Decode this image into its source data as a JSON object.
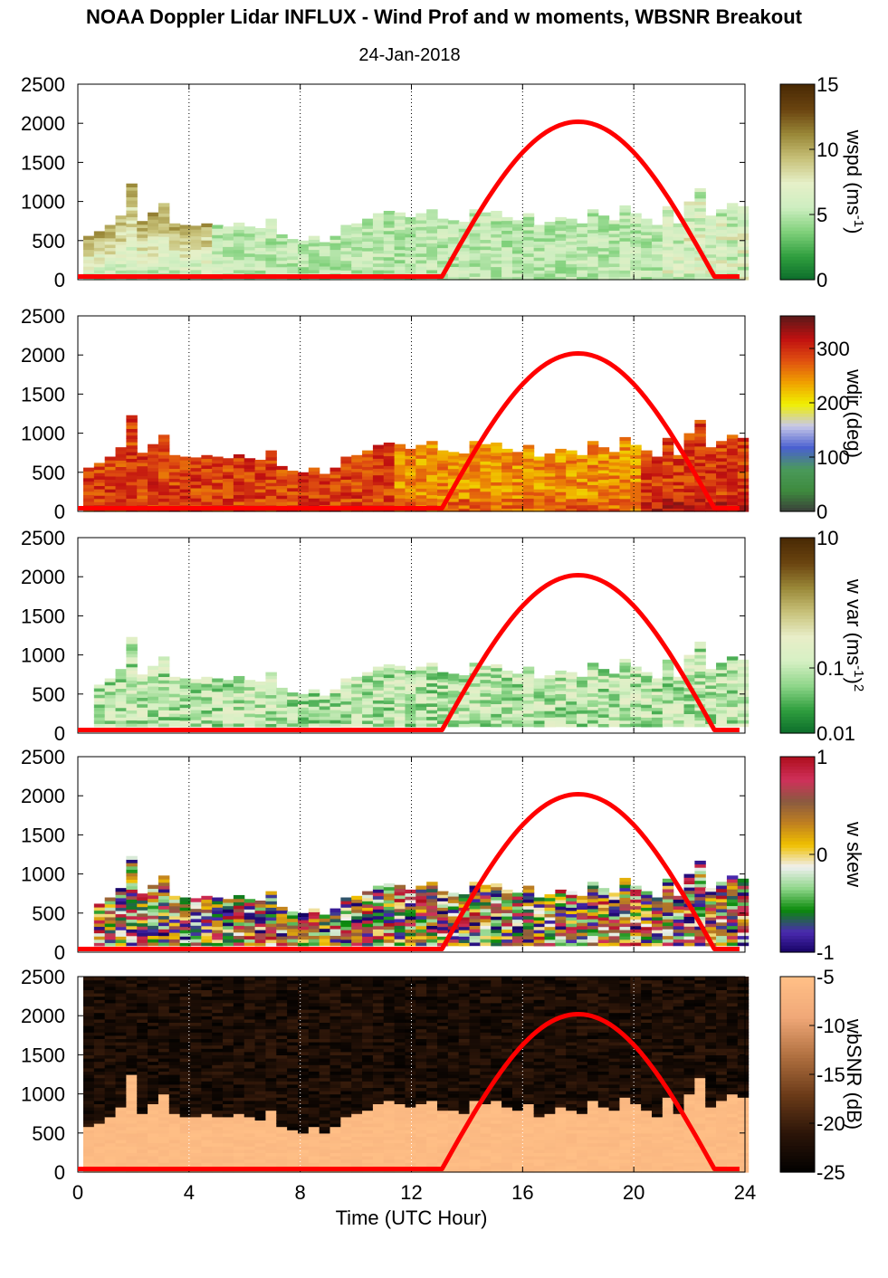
{
  "title": "NOAA Doppler Lidar INFLUX - Wind Prof and w moments, WBSNR Breakout",
  "date": "24-Jan-2018",
  "xlabel": "Time (UTC Hour)",
  "colors": {
    "overlay_curve": "#ff0000",
    "axis": "#000000",
    "grid": "#000000"
  },
  "chart_data": [
    {
      "type": "heatmap",
      "title": "",
      "colorbar_label": "wspd (ms",
      "colorbar_label_sup": "-1",
      "colorbar_label_tail": ")",
      "colorbar_ticks": [
        "0",
        "5",
        "10",
        "15"
      ],
      "clim": [
        0,
        15
      ],
      "colormap": "brown-tan-lightgreen-green",
      "xlim": [
        0,
        24
      ],
      "ylim": [
        0,
        2500
      ],
      "x_ticks": [
        "0",
        "4",
        "8",
        "12",
        "16",
        "20",
        "24"
      ],
      "y_ticks": [
        "0",
        "500",
        "1000",
        "1500",
        "2000",
        "2500"
      ],
      "grid": "vertical dotted",
      "top_height": [
        560,
        620,
        700,
        820,
        1230,
        750,
        860,
        980,
        720,
        700,
        690,
        720,
        700,
        680,
        730,
        680,
        660,
        780,
        580,
        520,
        500,
        560,
        480,
        560,
        700,
        720,
        780,
        850,
        880,
        860,
        800,
        850,
        900,
        780,
        760,
        740,
        900,
        860,
        880,
        800,
        760,
        850,
        700,
        740,
        800,
        780,
        720,
        900,
        820,
        760,
        950,
        850,
        780,
        700,
        940,
        720,
        1000,
        1170,
        820,
        900,
        980,
        940
      ],
      "overlay_curve": {
        "x": [
          0,
          13.1,
          18,
          22.9,
          23.8
        ],
        "y": [
          40,
          40,
          2020,
          40,
          40
        ]
      }
    },
    {
      "type": "heatmap",
      "title": "",
      "colorbar_label": "wdir (deg)",
      "colorbar_ticks": [
        "0",
        "100",
        "200",
        "300"
      ],
      "clim": [
        0,
        360
      ],
      "colormap": "gray-green-blue-lilac-yellow-orange-red-darkred",
      "xlim": [
        0,
        24
      ],
      "ylim": [
        0,
        2500
      ],
      "x_ticks": [
        "0",
        "4",
        "8",
        "12",
        "16",
        "20",
        "24"
      ],
      "y_ticks": [
        "0",
        "500",
        "1000",
        "1500",
        "2000",
        "2500"
      ],
      "grid": "vertical dotted",
      "top_height": [
        560,
        620,
        700,
        820,
        1230,
        750,
        860,
        980,
        720,
        700,
        690,
        720,
        700,
        680,
        730,
        680,
        660,
        780,
        580,
        520,
        500,
        560,
        480,
        560,
        700,
        720,
        780,
        850,
        880,
        860,
        800,
        850,
        900,
        780,
        760,
        740,
        900,
        860,
        880,
        800,
        760,
        850,
        700,
        740,
        800,
        780,
        720,
        900,
        820,
        760,
        950,
        850,
        780,
        700,
        940,
        720,
        1000,
        1170,
        820,
        900,
        980,
        940
      ],
      "overlay_curve": {
        "x": [
          0,
          13.1,
          18,
          22.9,
          23.8
        ],
        "y": [
          40,
          40,
          2020,
          40,
          40
        ]
      }
    },
    {
      "type": "heatmap",
      "title": "",
      "colorbar_label": "w var (ms",
      "colorbar_label_sup": "-1",
      "colorbar_label_tail": ")",
      "colorbar_label_sup2": "2",
      "colorbar_ticks": [
        "0.01",
        "0.1",
        "10"
      ],
      "colorbar_scale": "log",
      "clim": [
        0.01,
        10
      ],
      "colormap": "green-lightgreen-tan-brown",
      "xlim": [
        0,
        24
      ],
      "ylim": [
        0,
        2500
      ],
      "x_ticks": [
        "0",
        "4",
        "8",
        "12",
        "16",
        "20",
        "24"
      ],
      "y_ticks": [
        "0",
        "500",
        "1000",
        "1500",
        "2000",
        "2500"
      ],
      "grid": "vertical dotted",
      "top_height": [
        560,
        620,
        700,
        820,
        1230,
        750,
        860,
        980,
        720,
        700,
        690,
        720,
        700,
        680,
        730,
        680,
        660,
        780,
        580,
        520,
        500,
        560,
        480,
        560,
        700,
        720,
        780,
        850,
        880,
        860,
        800,
        850,
        900,
        780,
        760,
        740,
        900,
        860,
        880,
        800,
        760,
        850,
        700,
        740,
        800,
        780,
        720,
        900,
        820,
        760,
        950,
        850,
        780,
        700,
        940,
        720,
        1000,
        1170,
        820,
        900,
        980,
        940
      ],
      "overlay_curve": {
        "x": [
          0,
          13.1,
          18,
          22.9,
          23.8
        ],
        "y": [
          40,
          40,
          2020,
          40,
          40
        ]
      }
    },
    {
      "type": "heatmap",
      "title": "",
      "colorbar_label": "w skew",
      "colorbar_ticks": [
        "-1",
        "0",
        "1"
      ],
      "clim": [
        -1,
        1
      ],
      "colormap": "indigo-green-white-orange-brown-red",
      "xlim": [
        0,
        24
      ],
      "ylim": [
        0,
        2500
      ],
      "x_ticks": [
        "0",
        "4",
        "8",
        "12",
        "16",
        "20",
        "24"
      ],
      "y_ticks": [
        "0",
        "500",
        "1000",
        "1500",
        "2000",
        "2500"
      ],
      "grid": "vertical dotted",
      "top_height": [
        560,
        620,
        700,
        820,
        1230,
        750,
        860,
        980,
        720,
        700,
        690,
        720,
        700,
        680,
        730,
        680,
        660,
        780,
        580,
        520,
        500,
        560,
        480,
        560,
        700,
        720,
        780,
        850,
        880,
        860,
        800,
        850,
        900,
        780,
        760,
        740,
        900,
        860,
        880,
        800,
        760,
        850,
        700,
        740,
        800,
        780,
        720,
        900,
        820,
        760,
        950,
        850,
        780,
        700,
        940,
        720,
        1000,
        1170,
        820,
        900,
        980,
        940
      ],
      "overlay_curve": {
        "x": [
          0,
          13.1,
          18,
          22.9,
          23.8
        ],
        "y": [
          40,
          40,
          2020,
          40,
          40
        ]
      }
    },
    {
      "type": "heatmap",
      "title": "",
      "colorbar_label": "wbSNR (dB)",
      "colorbar_ticks": [
        "-25",
        "-20",
        "-15",
        "-10",
        "-5"
      ],
      "clim": [
        -25,
        -5
      ],
      "colormap": "black-brown-peach",
      "xlim": [
        0,
        24
      ],
      "ylim": [
        0,
        2500
      ],
      "x_ticks": [
        "0",
        "4",
        "8",
        "12",
        "16",
        "20",
        "24"
      ],
      "y_ticks": [
        "0",
        "500",
        "1000",
        "1500",
        "2000",
        "2500"
      ],
      "grid": "vertical dotted",
      "top_height": [
        560,
        620,
        700,
        820,
        1230,
        750,
        860,
        980,
        720,
        700,
        690,
        720,
        700,
        680,
        730,
        680,
        660,
        780,
        580,
        520,
        500,
        560,
        480,
        560,
        700,
        720,
        780,
        850,
        880,
        860,
        800,
        850,
        900,
        780,
        760,
        740,
        900,
        860,
        880,
        800,
        760,
        850,
        700,
        740,
        800,
        780,
        720,
        900,
        820,
        760,
        950,
        850,
        780,
        700,
        940,
        720,
        1000,
        1170,
        820,
        900,
        980,
        940
      ],
      "overlay_curve": {
        "x": [
          0,
          13.1,
          18,
          22.9,
          23.8
        ],
        "y": [
          40,
          40,
          2020,
          40,
          40
        ]
      }
    }
  ]
}
